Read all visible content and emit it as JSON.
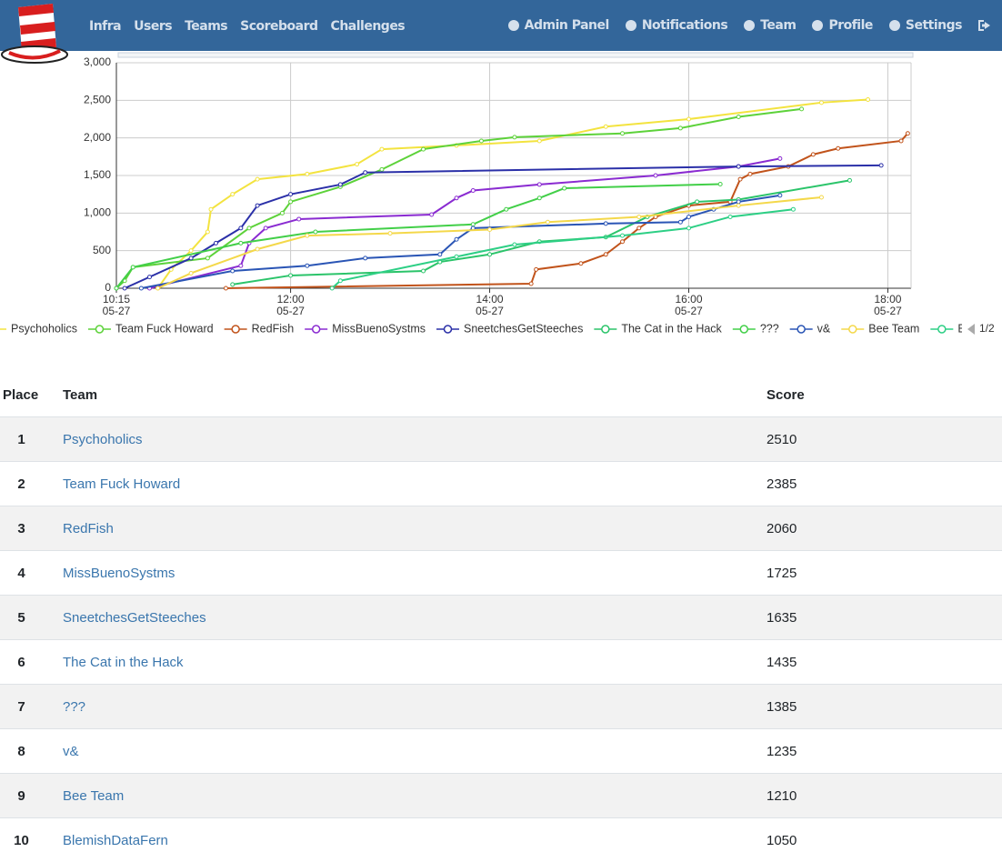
{
  "nav": {
    "links": [
      "Infra",
      "Users",
      "Teams",
      "Scoreboard",
      "Challenges"
    ],
    "right": [
      "Admin Panel",
      "Notifications",
      "Team",
      "Profile",
      "Settings"
    ]
  },
  "chart_data": {
    "type": "line",
    "xlim": [
      "05-27 10:15",
      "05-27 18:14"
    ],
    "xticks": [
      {
        "value": "05-27 10:15",
        "label": "10:15\n05-27"
      },
      {
        "value": "05-27 12:00",
        "label": "12:00\n05-27"
      },
      {
        "value": "05-27 14:00",
        "label": "14:00\n05-27"
      },
      {
        "value": "05-27 16:00",
        "label": "16:00\n05-27"
      },
      {
        "value": "05-27 18:00",
        "label": "18:00\n05-27"
      }
    ],
    "ylim": [
      0,
      3000
    ],
    "yticks": [
      0,
      500,
      {
        "value": 1000,
        "label": "1,000"
      },
      {
        "value": 1500,
        "label": "1,500"
      },
      {
        "value": 2000,
        "label": "2,000"
      },
      {
        "value": 2500,
        "label": "2,500"
      },
      {
        "value": 3000,
        "label": "3,000"
      }
    ],
    "grid": true,
    "legend_page": "1/2",
    "series": [
      {
        "name": "Psychoholics",
        "color": "#f3e33f",
        "x": [
          "05-27 10:40",
          "05-27 10:48",
          "05-27 11:00",
          "05-27 11:10",
          "05-27 11:12",
          "05-27 11:25",
          "05-27 11:40",
          "05-27 12:10",
          "05-27 12:40",
          "05-27 12:55",
          "05-27 13:40",
          "05-27 14:30",
          "05-27 15:10",
          "05-27 16:00",
          "05-27 17:20",
          "05-27 17:48"
        ],
        "values": [
          0,
          250,
          500,
          750,
          1050,
          1250,
          1450,
          1520,
          1650,
          1850,
          1900,
          1960,
          2150,
          2250,
          2470,
          2510
        ]
      },
      {
        "name": "Team Fuck Howard",
        "color": "#5dd23a",
        "x": [
          "05-27 10:15",
          "05-27 10:20",
          "05-27 10:25",
          "05-27 11:10",
          "05-27 11:35",
          "05-27 11:55",
          "05-27 12:00",
          "05-27 12:30",
          "05-27 12:55",
          "05-27 13:20",
          "05-27 13:55",
          "05-27 14:15",
          "05-27 15:20",
          "05-27 15:55",
          "05-27 16:30",
          "05-27 17:08"
        ],
        "values": [
          0,
          100,
          280,
          400,
          800,
          1000,
          1150,
          1350,
          1580,
          1850,
          1960,
          2010,
          2060,
          2130,
          2280,
          2385
        ]
      },
      {
        "name": "RedFish",
        "color": "#c1531b",
        "x": [
          "05-27 11:21",
          "05-27 14:25",
          "05-27 14:28",
          "05-27 14:55",
          "05-27 15:10",
          "05-27 15:20",
          "05-27 15:30",
          "05-27 15:40",
          "05-27 16:00",
          "05-27 16:25",
          "05-27 16:31",
          "05-27 16:37",
          "05-27 17:00",
          "05-27 17:15",
          "05-27 17:30",
          "05-27 18:08",
          "05-27 18:12"
        ],
        "values": [
          0,
          60,
          250,
          330,
          450,
          620,
          800,
          950,
          1100,
          1150,
          1450,
          1520,
          1620,
          1780,
          1860,
          1960,
          2060
        ]
      },
      {
        "name": "MissBuenoSystms",
        "color": "#8a2bd1",
        "x": [
          "05-27 10:35",
          "05-27 11:30",
          "05-27 11:35",
          "05-27 11:45",
          "05-27 12:05",
          "05-27 13:25",
          "05-27 13:40",
          "05-27 13:50",
          "05-27 14:30",
          "05-27 15:40",
          "05-27 16:30",
          "05-27 16:55"
        ],
        "values": [
          0,
          300,
          600,
          800,
          920,
          980,
          1200,
          1300,
          1380,
          1500,
          1620,
          1725
        ]
      },
      {
        "name": "SneetchesGetSteeches",
        "color": "#2b30a8",
        "x": [
          "05-27 10:20",
          "05-27 10:35",
          "05-27 11:00",
          "05-27 11:15",
          "05-27 11:30",
          "05-27 11:40",
          "05-27 12:00",
          "05-27 12:30",
          "05-27 12:45",
          "05-27 16:30",
          "05-27 17:56"
        ],
        "values": [
          0,
          150,
          400,
          600,
          800,
          1100,
          1250,
          1380,
          1540,
          1620,
          1635
        ]
      },
      {
        "name": "The Cat in the Hack",
        "color": "#2bc46a",
        "x": [
          "05-27 11:25",
          "05-27 12:00",
          "05-27 13:20",
          "05-27 13:30",
          "05-27 14:00",
          "05-27 14:30",
          "05-27 15:10",
          "05-27 15:35",
          "05-27 16:05",
          "05-27 16:30",
          "05-27 17:37"
        ],
        "values": [
          50,
          170,
          230,
          350,
          450,
          620,
          680,
          950,
          1150,
          1180,
          1435
        ]
      },
      {
        "name": "???",
        "color": "#42cf48",
        "x": [
          "05-27 10:15",
          "05-27 10:25",
          "05-27 11:30",
          "05-27 12:15",
          "05-27 13:50",
          "05-27 14:10",
          "05-27 14:30",
          "05-27 14:45",
          "05-27 16:19"
        ],
        "values": [
          0,
          280,
          600,
          750,
          850,
          1050,
          1200,
          1330,
          1385
        ]
      },
      {
        "name": "v&",
        "color": "#2a55b5",
        "x": [
          "05-27 10:30",
          "05-27 11:25",
          "05-27 12:10",
          "05-27 12:45",
          "05-27 13:30",
          "05-27 13:40",
          "05-27 13:50",
          "05-27 15:10",
          "05-27 15:55",
          "05-27 16:00",
          "05-27 16:15",
          "05-27 16:30",
          "05-27 16:55"
        ],
        "values": [
          0,
          230,
          300,
          400,
          450,
          650,
          800,
          860,
          880,
          950,
          1050,
          1150,
          1235
        ]
      },
      {
        "name": "Bee Team",
        "color": "#f4d84a",
        "x": [
          "05-27 10:40",
          "05-27 11:00",
          "05-27 11:40",
          "05-27 12:10",
          "05-27 13:00",
          "05-27 14:00",
          "05-27 14:35",
          "05-27 15:30",
          "05-27 16:30",
          "05-27 17:20"
        ],
        "values": [
          0,
          200,
          520,
          700,
          730,
          780,
          880,
          950,
          1100,
          1210
        ]
      },
      {
        "name": "BlemishDataFern",
        "color": "#2dcf85",
        "x": [
          "05-27 12:25",
          "05-27 12:30",
          "05-27 13:40",
          "05-27 14:15",
          "05-27 15:20",
          "05-27 16:00",
          "05-27 16:25",
          "05-27 17:03"
        ],
        "values": [
          0,
          100,
          420,
          580,
          700,
          800,
          950,
          1050
        ]
      }
    ]
  },
  "table": {
    "columns": [
      "Place",
      "Team",
      "Score"
    ],
    "rows": [
      [
        1,
        "Psychoholics",
        2510
      ],
      [
        2,
        "Team Fuck Howard",
        2385
      ],
      [
        3,
        "RedFish",
        2060
      ],
      [
        4,
        "MissBuenoSystms",
        1725
      ],
      [
        5,
        "SneetchesGetSteeches",
        1635
      ],
      [
        6,
        "The Cat in the Hack",
        1435
      ],
      [
        7,
        "???",
        1385
      ],
      [
        8,
        "v&",
        1235
      ],
      [
        9,
        "Bee Team",
        1210
      ],
      [
        10,
        "BlemishDataFern",
        1050
      ]
    ]
  }
}
